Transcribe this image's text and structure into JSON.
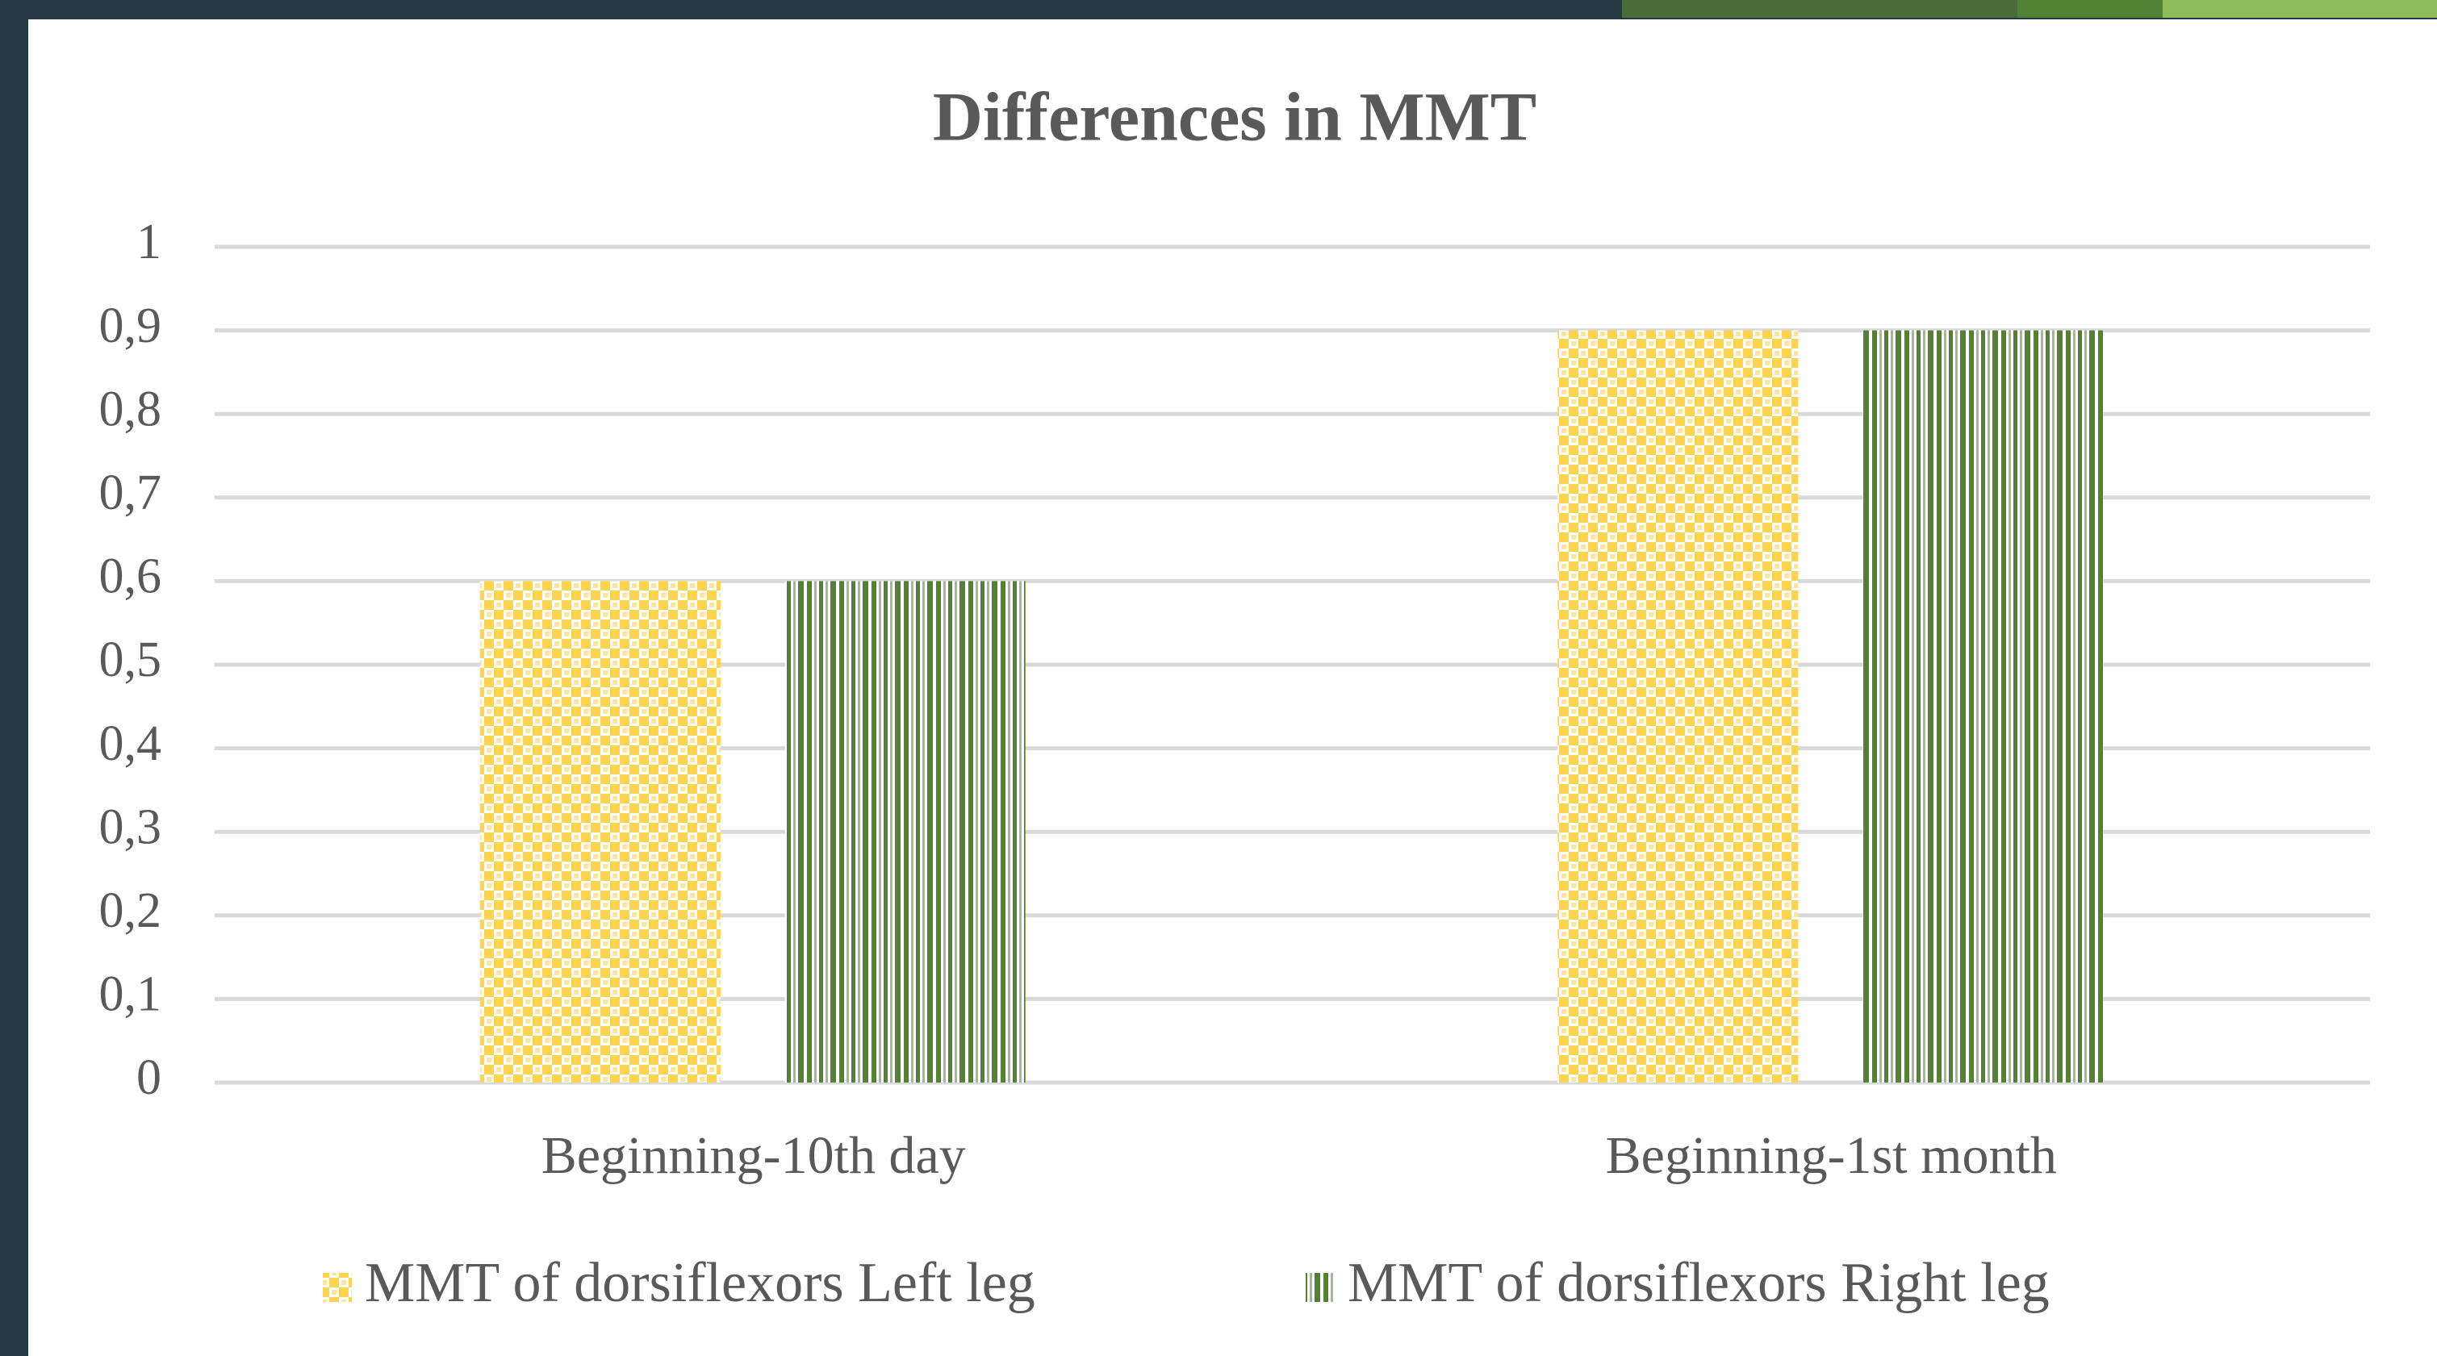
{
  "chart_data": {
    "type": "bar",
    "title": "Differences in MMT",
    "categories": [
      "Beginning-10th day",
      "Beginning-1st month"
    ],
    "series": [
      {
        "name": "MMT of dorsiflexors Left leg",
        "color": "#ffd34d",
        "values": [
          0.6,
          0.9
        ]
      },
      {
        "name": "MMT of dorsiflexors Right leg",
        "color": "#548235",
        "values": [
          0.6,
          0.9
        ]
      }
    ],
    "ylim": [
      0,
      1
    ],
    "yticks": [
      0,
      {
        "value": 0.1,
        "label": "0,1"
      },
      {
        "value": 0.2,
        "label": "0,2"
      },
      {
        "value": 0.3,
        "label": "0,3"
      },
      {
        "value": 0.4,
        "label": "0,4"
      },
      {
        "value": 0.5,
        "label": "0,5"
      },
      {
        "value": 0.6,
        "label": "0,6"
      },
      {
        "value": 0.7,
        "label": "0,7"
      },
      {
        "value": 0.8,
        "label": "0,8"
      },
      {
        "value": 0.9,
        "label": "0,9"
      },
      1
    ],
    "grid": true,
    "legend": "bottom"
  }
}
